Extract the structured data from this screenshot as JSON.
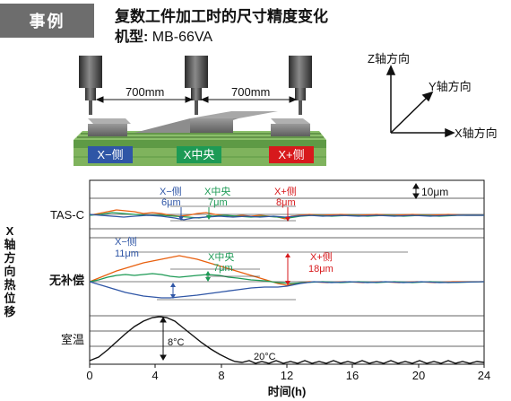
{
  "header": {
    "tag": "事例",
    "title": "复数工件加工时的尺寸精度变化",
    "model_label": "机型:",
    "model_value": "MB-66VA"
  },
  "machine_diagram": {
    "spacing_left": "700mm",
    "spacing_right": "700mm",
    "positions": [
      {
        "label": "X−侧",
        "color": "#2f56a6"
      },
      {
        "label": "X中央",
        "color": "#1d9a55"
      },
      {
        "label": "X+侧",
        "color": "#d7191c"
      }
    ]
  },
  "axes_diagram": {
    "z": "Z轴方向",
    "y": "Y轴方向",
    "x": "X轴方向"
  },
  "chart": {
    "y_axis_title": "X轴方向热位移",
    "row_tas": "TAS-C",
    "row_none": "无补偿",
    "row_temp": "室温",
    "scale_bar": "10μm",
    "tas_annotations": [
      {
        "label": "X−侧",
        "value": "6μm",
        "color": "#2f56a6"
      },
      {
        "label": "X中央",
        "value": "7μm",
        "color": "#1d9a55"
      },
      {
        "label": "X+侧",
        "value": "8μm",
        "color": "#d7191c"
      }
    ],
    "none_annotations": [
      {
        "label": "X−侧",
        "value": "11μm",
        "color": "#2f56a6"
      },
      {
        "label": "X中央",
        "value": "7μm",
        "color": "#1d9a55"
      },
      {
        "label": "X+侧",
        "value": "18μm",
        "color": "#d7191c"
      }
    ],
    "temp_rise": "8°C",
    "temp_base": "20°C",
    "x_ticks": [
      "0",
      "4",
      "8",
      "12",
      "16",
      "20",
      "24"
    ],
    "x_axis_title": "时间(h)"
  }
}
